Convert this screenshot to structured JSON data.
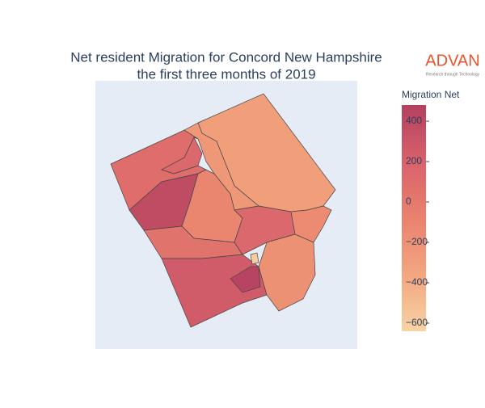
{
  "chart_data": {
    "type": "choropleth",
    "title": [
      "Net resident Migration for Concord New Hampshire",
      "the first three months of 2019"
    ],
    "colorbar_title": "Migration Net",
    "values": [
      -300,
      -250,
      100,
      380,
      -100,
      50,
      250,
      150,
      -150,
      -200,
      450,
      -600,
      150
    ],
    "zlim": [
      -640,
      480
    ],
    "colorscale": [
      "#f8d3a4",
      "#f3a67f",
      "#e9826e",
      "#d8626b",
      "#b3405f"
    ],
    "ticks": [
      {
        "value": 400,
        "label": "400"
      },
      {
        "value": 200,
        "label": "200"
      },
      {
        "value": 0,
        "label": "0"
      },
      {
        "value": -200,
        "label": "−200"
      },
      {
        "value": -400,
        "label": "−400"
      },
      {
        "value": -600,
        "label": "−600"
      }
    ],
    "logo": {
      "name": "ADVAN",
      "tagline": "Research through Technology"
    }
  }
}
